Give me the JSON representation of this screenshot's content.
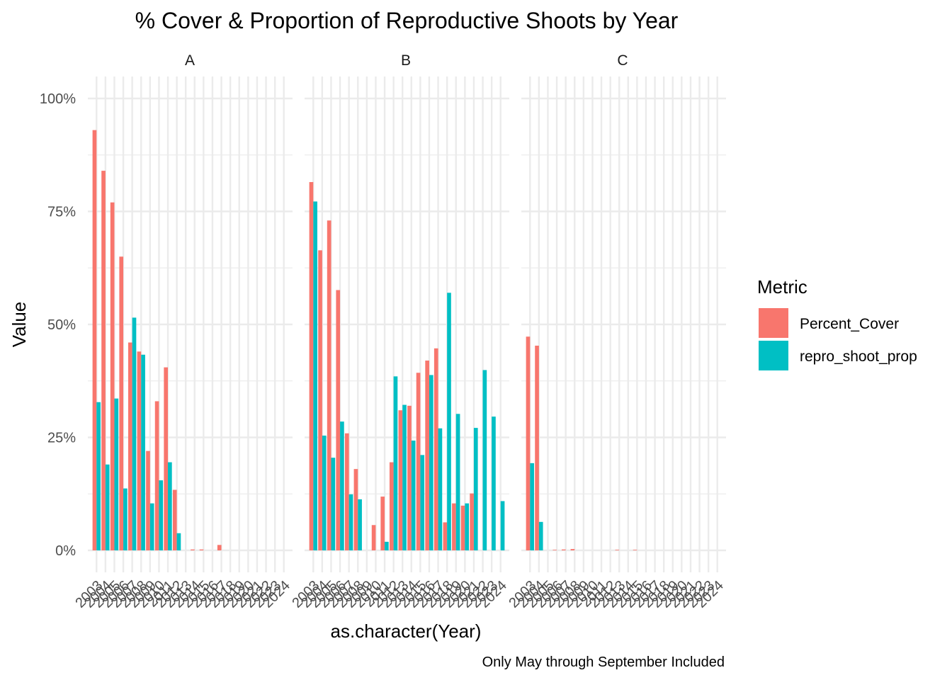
{
  "chart_data": {
    "type": "bar",
    "title": "% Cover & Proportion of Reproductive Shoots by Year",
    "xlabel": "as.character(Year)",
    "ylabel": "Value",
    "caption": "Only May through September Included",
    "ylim": [
      0,
      1.0
    ],
    "y_ticks": [
      0,
      0.25,
      0.5,
      0.75,
      1.0
    ],
    "y_tick_labels": [
      "0%",
      "25%",
      "50%",
      "75%",
      "100%"
    ],
    "grid": true,
    "legend": {
      "title": "Metric",
      "position": "right",
      "entries": [
        {
          "name": "Percent_Cover",
          "color": "#F8766D"
        },
        {
          "name": "repro_shoot_prop",
          "color": "#00BFC4"
        }
      ]
    },
    "categories": [
      "2003",
      "2004",
      "2005",
      "2006",
      "2007",
      "2008",
      "2009",
      "2010",
      "2011",
      "2012",
      "2013",
      "2014",
      "2015",
      "2016",
      "2017",
      "2018",
      "2019",
      "2020",
      "2021",
      "2022",
      "2023",
      "2024"
    ],
    "facets": [
      {
        "label": "A",
        "series": [
          {
            "name": "Percent_Cover",
            "values": [
              0.93,
              0.84,
              0.77,
              0.65,
              0.46,
              0.44,
              0.22,
              0.33,
              0.405,
              0.134,
              null,
              0.002,
              0.002,
              null,
              0.012,
              null,
              null,
              null,
              null,
              null,
              null,
              null
            ]
          },
          {
            "name": "repro_shoot_prop",
            "values": [
              0.328,
              0.19,
              0.336,
              0.137,
              0.515,
              0.433,
              0.104,
              0.155,
              0.195,
              0.038,
              null,
              null,
              null,
              null,
              null,
              null,
              null,
              null,
              null,
              null,
              null,
              null
            ]
          }
        ]
      },
      {
        "label": "B",
        "series": [
          {
            "name": "Percent_Cover",
            "values": [
              0.815,
              0.664,
              0.73,
              0.576,
              0.259,
              0.18,
              null,
              0.056,
              0.119,
              0.195,
              0.31,
              0.32,
              0.393,
              0.42,
              0.447,
              0.062,
              0.104,
              0.099,
              0.126,
              null,
              null,
              null
            ]
          },
          {
            "name": "repro_shoot_prop",
            "values": [
              0.772,
              0.254,
              0.205,
              0.285,
              0.124,
              0.113,
              null,
              null,
              0.019,
              0.385,
              0.322,
              0.243,
              0.211,
              0.388,
              0.27,
              0.57,
              0.302,
              0.104,
              0.271,
              0.399,
              0.296,
              0.109
            ]
          }
        ]
      },
      {
        "label": "C",
        "series": [
          {
            "name": "Percent_Cover",
            "values": [
              0.473,
              0.453,
              null,
              0.001,
              0.002,
              0.003,
              null,
              null,
              null,
              null,
              0.001,
              null,
              0.001,
              null,
              null,
              null,
              null,
              null,
              null,
              null,
              null,
              null
            ]
          },
          {
            "name": "repro_shoot_prop",
            "values": [
              0.193,
              0.063,
              null,
              null,
              null,
              null,
              null,
              null,
              null,
              null,
              null,
              null,
              null,
              null,
              null,
              null,
              null,
              null,
              null,
              null,
              null,
              null
            ]
          }
        ]
      }
    ]
  }
}
